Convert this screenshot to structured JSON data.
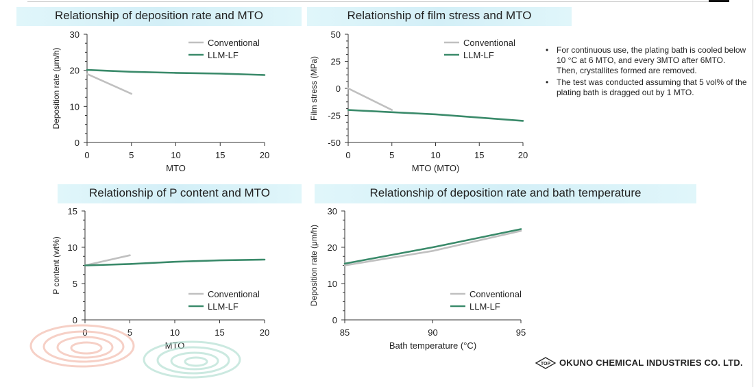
{
  "notes": [
    {
      "text": "For continuous use, the plating bath is cooled below 10 °C at 6 MTO, and every 3MTO after 6MTO.",
      "continuation": "Then, crystallites formed are removed."
    },
    {
      "text": "The test was conducted assuming that 5 vol% of the plating bath is dragged out by 1 MTO.",
      "continuation": ""
    }
  ],
  "company": {
    "mark": "TOP",
    "name": "OKUNO CHEMICAL INDUSTRIES CO. LTD."
  },
  "colors": {
    "conventional": "#c0c0c0",
    "llm_lf": "#3a8a6a",
    "title_band": "#d6f1f7"
  },
  "chart_data": [
    {
      "type": "line",
      "title": "Relationship of deposition rate and MTO",
      "xlabel": "MTO",
      "ylabel": "Deposition rate (μm/h)",
      "xlim": [
        0,
        20
      ],
      "ylim": [
        0,
        30
      ],
      "xticks": [
        0,
        5,
        10,
        15,
        20
      ],
      "yticks": [
        0,
        10,
        20,
        30
      ],
      "legend": "top-right",
      "series": [
        {
          "name": "Conventional",
          "x": [
            0,
            5
          ],
          "y": [
            19,
            13.5
          ]
        },
        {
          "name": "LLM-LF",
          "x": [
            0,
            5,
            10,
            15,
            20
          ],
          "y": [
            20.1,
            19.6,
            19.3,
            19.1,
            18.7
          ]
        }
      ]
    },
    {
      "type": "line",
      "title": "Relationship of film stress and MTO",
      "xlabel": "MTO (MTO)",
      "ylabel": "Film stress (MPa)",
      "xlim": [
        0,
        20
      ],
      "ylim": [
        -50,
        50
      ],
      "xticks": [
        0,
        5,
        10,
        15,
        20
      ],
      "yticks": [
        -50,
        -25,
        0,
        25,
        50
      ],
      "legend": "top-right",
      "series": [
        {
          "name": "Conventional",
          "x": [
            0,
            5
          ],
          "y": [
            0,
            -20
          ]
        },
        {
          "name": "LLM-LF",
          "x": [
            0,
            5,
            10,
            15,
            20
          ],
          "y": [
            -20,
            -22,
            -24,
            -27,
            -30
          ]
        }
      ]
    },
    {
      "type": "line",
      "title": "Relationship of P content and MTO",
      "xlabel": "MTO",
      "ylabel": "P content (wt%)",
      "xlim": [
        0,
        20
      ],
      "ylim": [
        0,
        15
      ],
      "xticks": [
        0,
        5,
        10,
        15,
        20
      ],
      "yticks": [
        0,
        5,
        10,
        15
      ],
      "legend": "bottom-right",
      "series": [
        {
          "name": "Conventional",
          "x": [
            0,
            5
          ],
          "y": [
            7.5,
            8.9
          ]
        },
        {
          "name": "LLM-LF",
          "x": [
            0,
            5,
            10,
            15,
            20
          ],
          "y": [
            7.5,
            7.7,
            8.0,
            8.2,
            8.3
          ]
        }
      ]
    },
    {
      "type": "line",
      "title": "Relationship of deposition rate and bath temperature",
      "xlabel": "Bath temperature (°C)",
      "ylabel": "Deposition rate (μm/h)",
      "xlim": [
        85,
        95
      ],
      "ylim": [
        0,
        30
      ],
      "xticks": [
        85,
        90,
        95
      ],
      "yticks": [
        0,
        10,
        20,
        30
      ],
      "legend": "bottom-right",
      "series": [
        {
          "name": "Conventional",
          "x": [
            85,
            90,
            95
          ],
          "y": [
            15,
            19,
            24.5
          ]
        },
        {
          "name": "LLM-LF",
          "x": [
            85,
            90,
            95
          ],
          "y": [
            15.5,
            20,
            25
          ]
        }
      ]
    }
  ]
}
